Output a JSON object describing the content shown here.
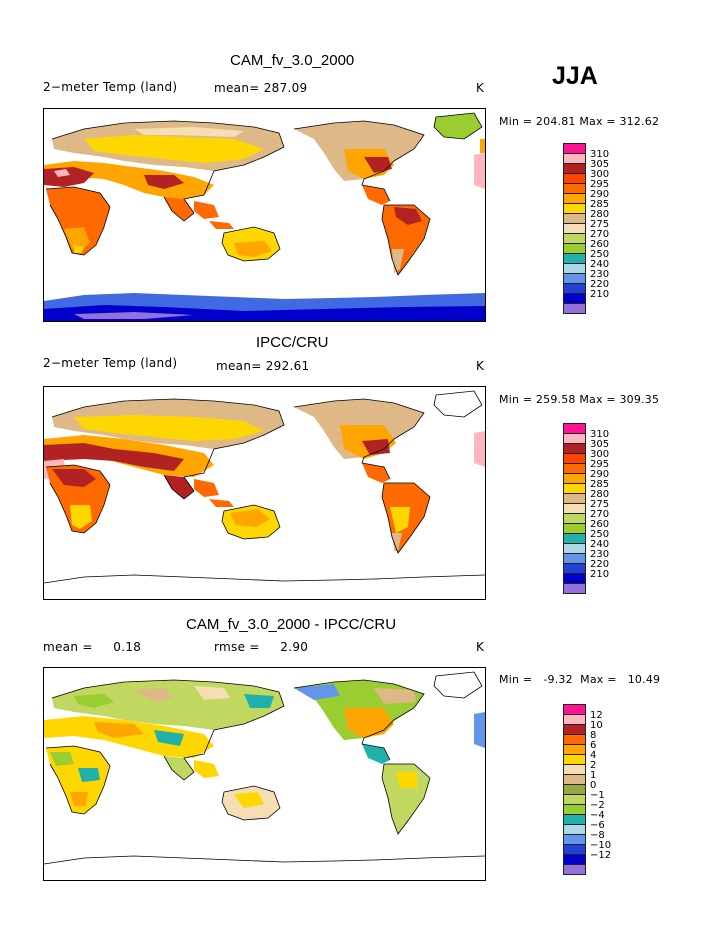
{
  "season": "JJA",
  "colors": {
    "abs_palette": [
      "#9370db",
      "#0000cd",
      "#2040d8",
      "#6495ed",
      "#add8e6",
      "#20b2aa",
      "#9acd32",
      "#c0d860",
      "#f5deb3",
      "#deb887",
      "#ffd700",
      "#ffa500",
      "#ff6a00",
      "#ff4500",
      "#b22222",
      "#ffb6c1",
      "#ff1493"
    ],
    "diff_palette": [
      "#9370db",
      "#0000cd",
      "#2040d8",
      "#6495ed",
      "#add8e6",
      "#20b2aa",
      "#9acd32",
      "#c0d860",
      "#98a840",
      "#deb887",
      "#f5deb3",
      "#ffd700",
      "#ffa500",
      "#ff6a00",
      "#b22222",
      "#ffb6c1",
      "#ff1493"
    ]
  },
  "panels": [
    {
      "title": "CAM_fv_3.0_2000",
      "left_label": "2−meter Temp (land)",
      "center_label": "mean= 287.09",
      "units": "K",
      "stats": "Min = 204.81  Max = 312.62",
      "legend_labels": [
        "310",
        "305",
        "300",
        "295",
        "290",
        "285",
        "280",
        "275",
        "270",
        "260",
        "250",
        "240",
        "230",
        "220",
        "210"
      ],
      "map_field": "model"
    },
    {
      "title": "IPCC/CRU",
      "left_label": "2−meter Temp (land)",
      "center_label": "mean= 292.61",
      "units": "K",
      "stats": "Min = 259.58  Max = 309.35",
      "legend_labels": [
        "310",
        "305",
        "300",
        "295",
        "290",
        "285",
        "280",
        "275",
        "270",
        "260",
        "250",
        "240",
        "230",
        "220",
        "210"
      ],
      "map_field": "obs"
    },
    {
      "title": "CAM_fv_3.0_2000 - IPCC/CRU",
      "left_label": "mean =     0.18",
      "center_label": "rmse =     2.90",
      "units": "K",
      "stats": "Min =   -9.32  Max =   10.49",
      "legend_labels": [
        "12",
        "10",
        "8",
        "6",
        "4",
        "2",
        "1",
        "0",
        "−1",
        "−2",
        "−4",
        "−6",
        "−8",
        "−10",
        "−12"
      ],
      "map_field": "diff"
    }
  ]
}
